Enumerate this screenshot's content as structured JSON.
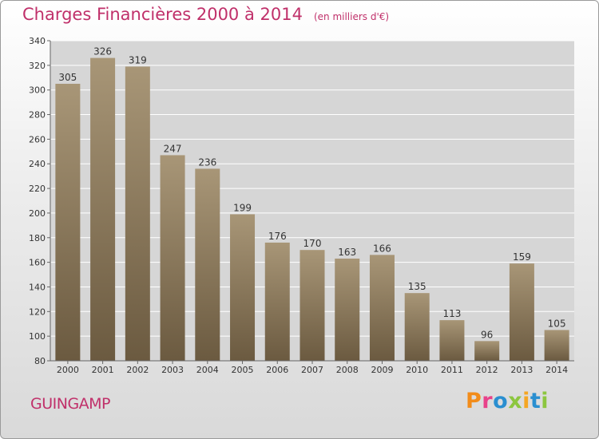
{
  "header": {
    "title": "Charges Financières 2000 à 2014",
    "unit": "(en milliers d'€)"
  },
  "footer": {
    "city": "GUINGAMP",
    "logo": "Proxiti",
    "logo_colors": [
      "#f28c1a",
      "#e8428a",
      "#2a8fd0",
      "#8cc63f",
      "#f5a623",
      "#2a8fd0",
      "#8cc63f"
    ]
  },
  "colors": {
    "accent": "#c0306a",
    "bar_top": "#a89677",
    "bar_bottom": "#6b5a40",
    "plot_bg": "#d6d6d6",
    "grid": "#ffffff"
  },
  "chart_data": {
    "type": "bar",
    "title": "Charges Financières 2000 à 2014",
    "subtitle": "(en milliers d'€)",
    "categories": [
      "2000",
      "2001",
      "2002",
      "2003",
      "2004",
      "2005",
      "2006",
      "2007",
      "2008",
      "2009",
      "2010",
      "2011",
      "2012",
      "2013",
      "2014"
    ],
    "values": [
      305,
      326,
      319,
      247,
      236,
      199,
      176,
      170,
      163,
      166,
      135,
      113,
      96,
      159,
      105
    ],
    "ylim": [
      80,
      340
    ],
    "yticks": [
      80,
      100,
      120,
      140,
      160,
      180,
      200,
      220,
      240,
      260,
      280,
      300,
      320,
      340
    ],
    "grid": true,
    "xlabel": "",
    "ylabel": ""
  }
}
